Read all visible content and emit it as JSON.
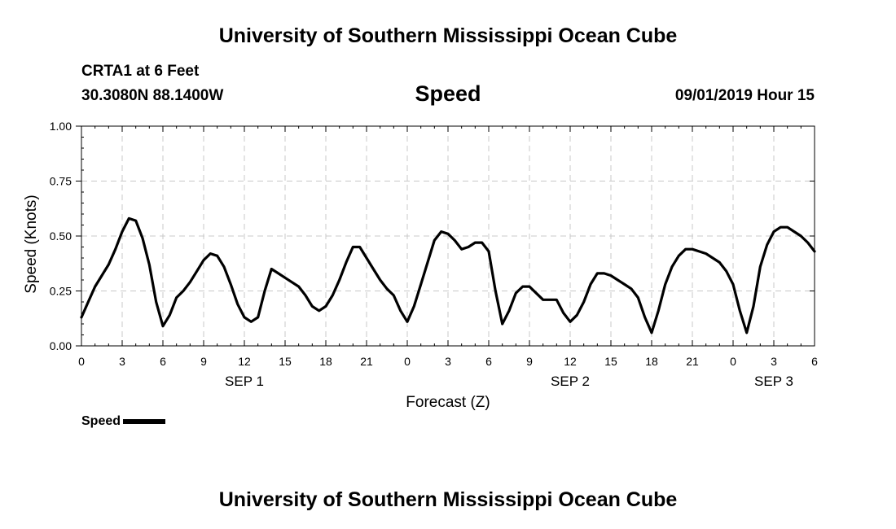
{
  "header": {
    "title": "University of Southern Mississippi Ocean Cube",
    "station": "CRTA1 at 6 Feet",
    "coords": "30.3080N 88.1400W",
    "variable": "Speed",
    "datetime": "09/01/2019 Hour 15"
  },
  "footer": {
    "title": "University of Southern Mississippi Ocean Cube"
  },
  "legend": {
    "label": "Speed"
  },
  "colors": {
    "line": "#000000",
    "grid": "#c8c8c8"
  },
  "chart_data": {
    "type": "line",
    "title": "Speed",
    "xlabel": "Forecast (Z)",
    "ylabel": "Speed (Knots)",
    "xlim": [
      0,
      54
    ],
    "ylim": [
      0,
      1
    ],
    "yticks": [
      0,
      0.25,
      0.5,
      0.75,
      1
    ],
    "ytick_labels": [
      "0.00",
      "0.25",
      "0.50",
      "0.75",
      "1.00"
    ],
    "xticks": [
      0,
      3,
      6,
      9,
      12,
      15,
      18,
      21,
      24,
      27,
      30,
      33,
      36,
      39,
      42,
      45,
      48,
      51,
      54
    ],
    "xtick_labels": [
      "0",
      "3",
      "6",
      "9",
      "12",
      "15",
      "18",
      "21",
      "0",
      "3",
      "6",
      "9",
      "12",
      "15",
      "18",
      "21",
      "0",
      "3",
      "6"
    ],
    "date_labels": [
      {
        "x": 12,
        "label": "SEP 1"
      },
      {
        "x": 36,
        "label": "SEP 2"
      },
      {
        "x": 51,
        "label": "SEP 3"
      }
    ],
    "grid": true,
    "series": [
      {
        "name": "Speed",
        "x": [
          0,
          0.5,
          1,
          1.5,
          2,
          2.5,
          3,
          3.5,
          4,
          4.5,
          5,
          5.5,
          6,
          6.5,
          7,
          7.5,
          8,
          8.5,
          9,
          9.5,
          10,
          10.5,
          11,
          11.5,
          12,
          12.5,
          13,
          13.5,
          14,
          14.5,
          15,
          15.5,
          16,
          16.5,
          17,
          17.5,
          18,
          18.5,
          19,
          19.5,
          20,
          20.5,
          21,
          21.5,
          22,
          22.5,
          23,
          23.5,
          24,
          24.5,
          25,
          25.5,
          26,
          26.5,
          27,
          27.5,
          28,
          28.5,
          29,
          29.5,
          30,
          30.5,
          31,
          31.5,
          32,
          32.5,
          33,
          33.5,
          34,
          34.5,
          35,
          35.5,
          36,
          36.5,
          37,
          37.5,
          38,
          38.5,
          39,
          39.5,
          40,
          40.5,
          41,
          41.5,
          42,
          42.5,
          43,
          43.5,
          44,
          44.5,
          45,
          45.5,
          46,
          46.5,
          47,
          47.5,
          48,
          48.5,
          49,
          49.5,
          50,
          50.5,
          51,
          51.5,
          52,
          52.5,
          53,
          53.5,
          54
        ],
        "values": [
          0.13,
          0.2,
          0.27,
          0.32,
          0.37,
          0.44,
          0.52,
          0.58,
          0.57,
          0.49,
          0.37,
          0.2,
          0.09,
          0.14,
          0.22,
          0.25,
          0.29,
          0.34,
          0.39,
          0.42,
          0.41,
          0.36,
          0.28,
          0.19,
          0.13,
          0.11,
          0.13,
          0.25,
          0.35,
          0.33,
          0.31,
          0.29,
          0.27,
          0.23,
          0.18,
          0.16,
          0.18,
          0.23,
          0.3,
          0.38,
          0.45,
          0.45,
          0.4,
          0.35,
          0.3,
          0.26,
          0.23,
          0.16,
          0.11,
          0.18,
          0.28,
          0.38,
          0.48,
          0.52,
          0.51,
          0.48,
          0.44,
          0.45,
          0.47,
          0.47,
          0.43,
          0.25,
          0.1,
          0.16,
          0.24,
          0.27,
          0.27,
          0.24,
          0.21,
          0.21,
          0.21,
          0.15,
          0.11,
          0.14,
          0.2,
          0.28,
          0.33,
          0.33,
          0.32,
          0.3,
          0.28,
          0.26,
          0.22,
          0.13,
          0.06,
          0.16,
          0.28,
          0.36,
          0.41,
          0.44,
          0.44,
          0.43,
          0.42,
          0.4,
          0.38,
          0.34,
          0.28,
          0.16,
          0.06,
          0.18,
          0.36,
          0.46,
          0.52,
          0.54,
          0.54,
          0.52,
          0.5,
          0.47,
          0.43
        ]
      }
    ]
  }
}
